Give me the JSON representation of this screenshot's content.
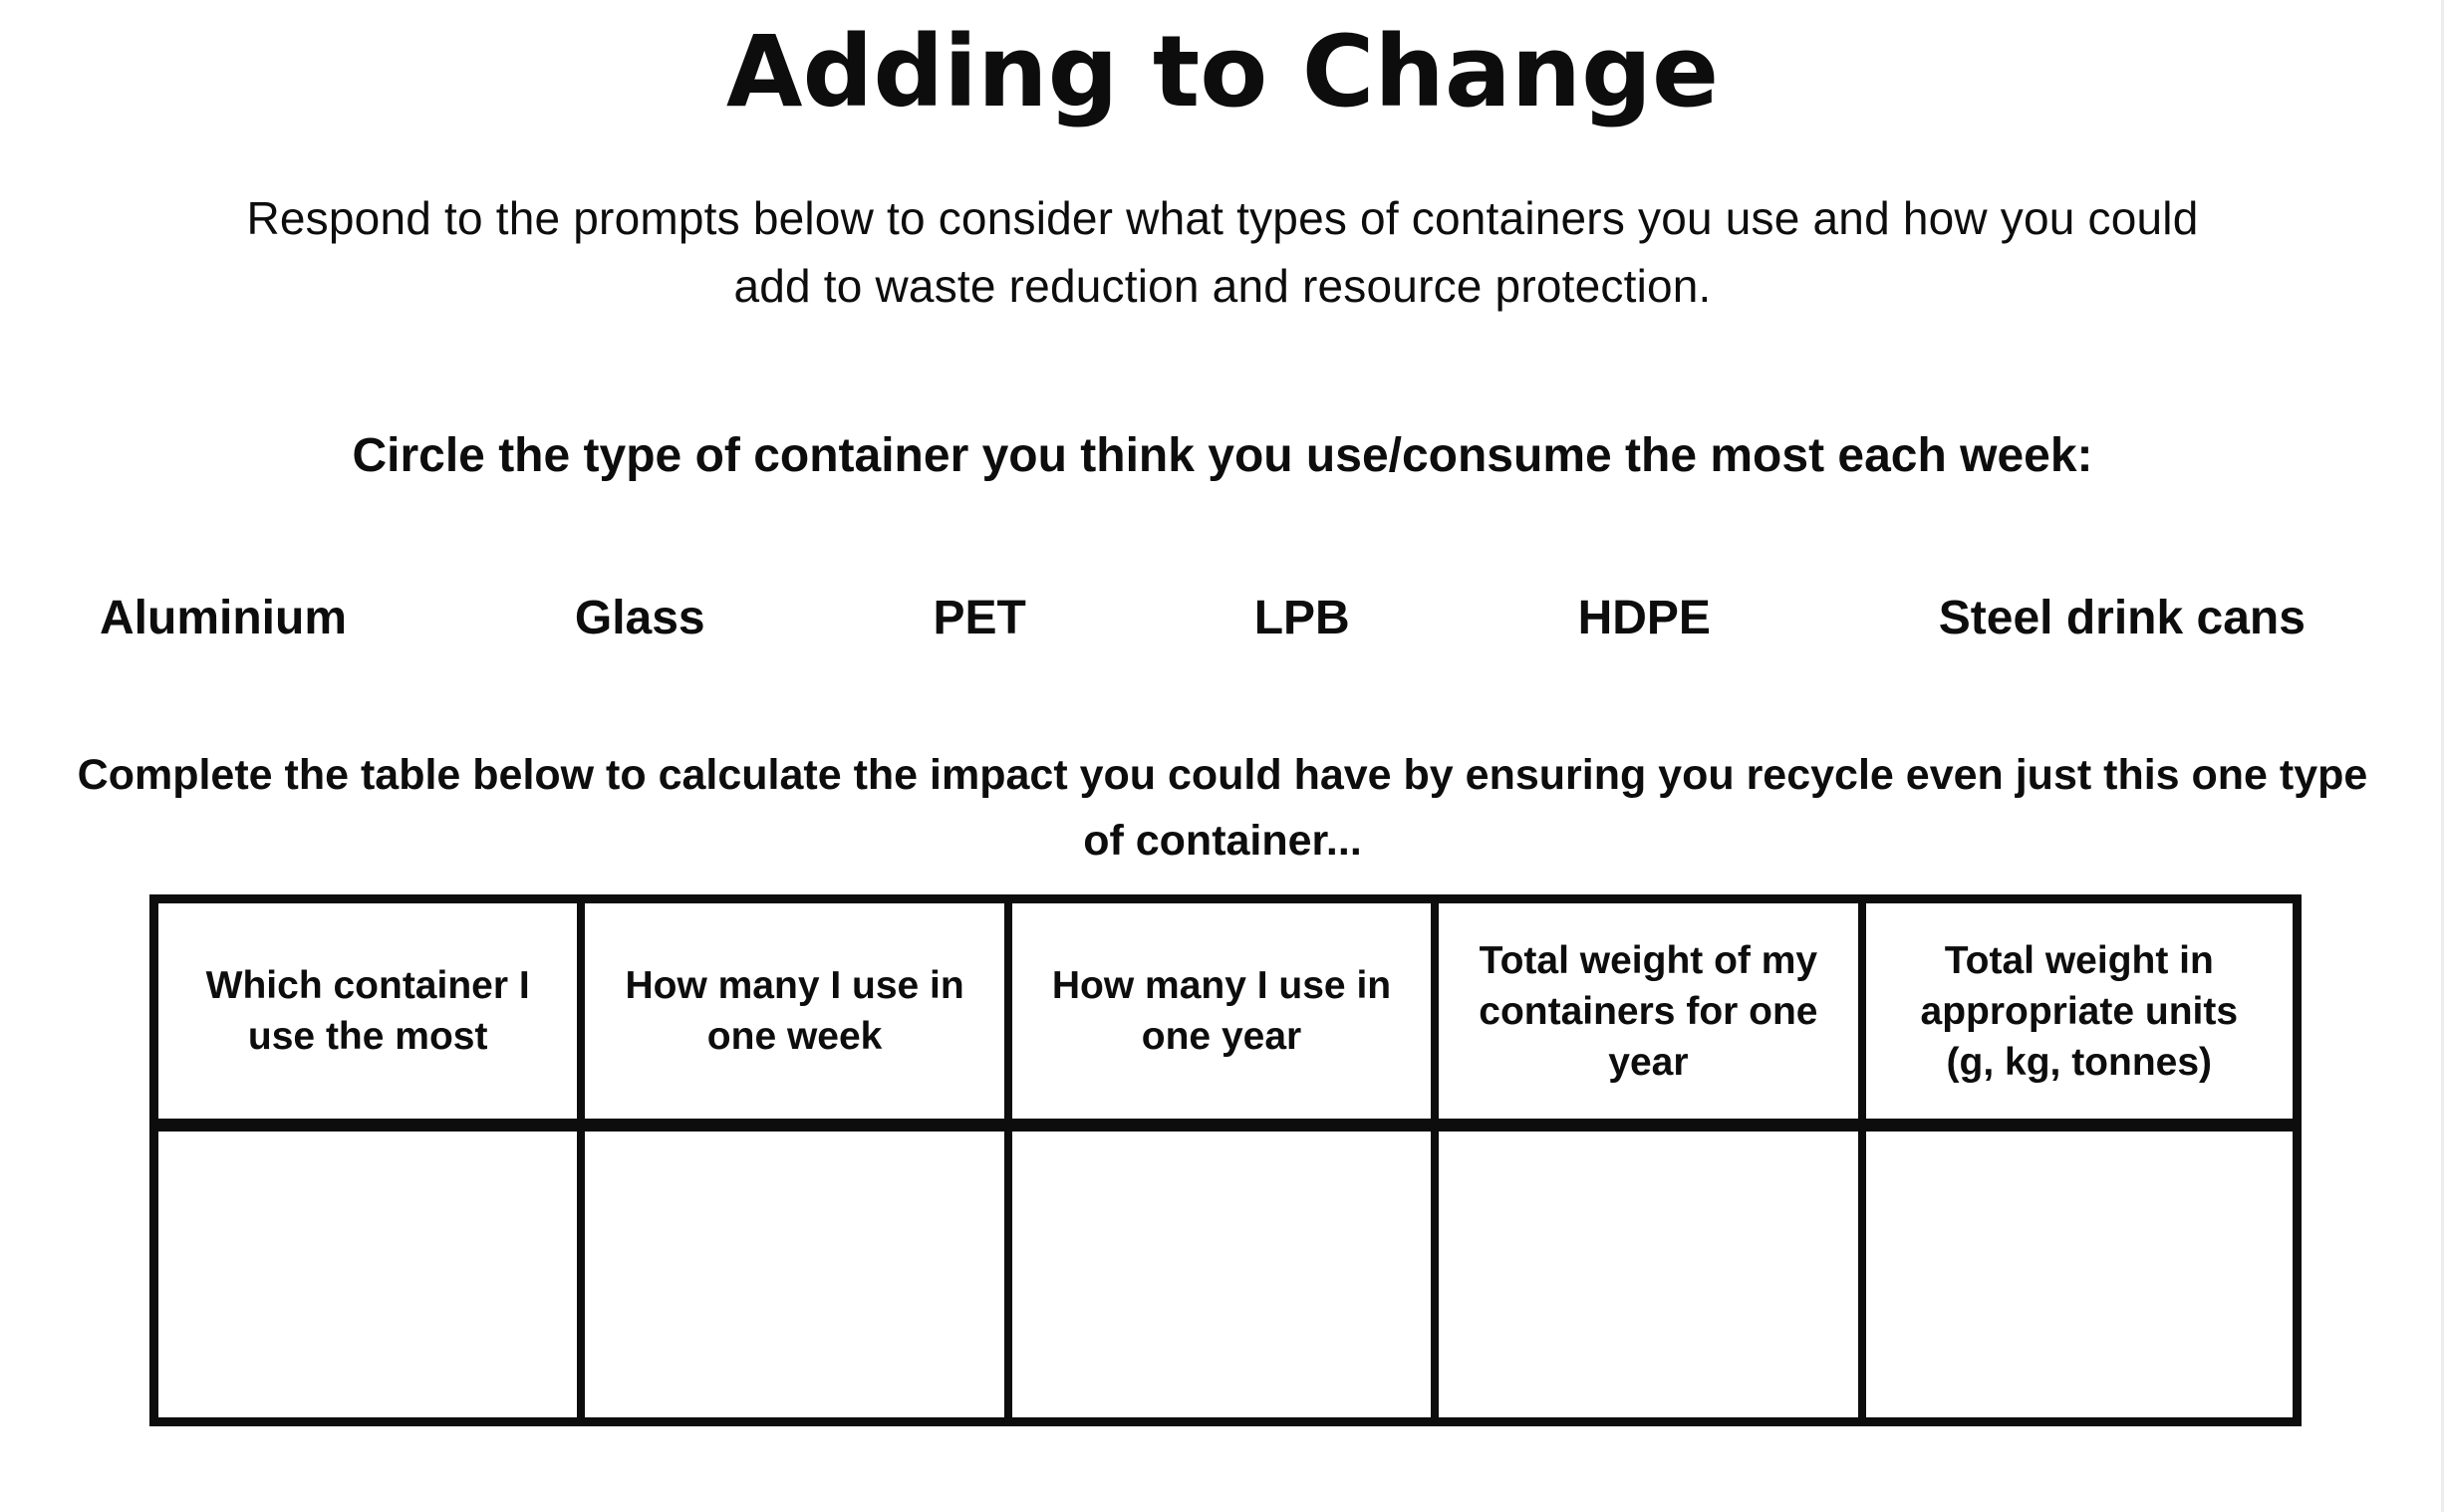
{
  "page": {
    "title": "Adding to Change",
    "subtitle": {
      "line1": "Respond to the prompts below to consider what types of containers you use and how you could",
      "line2": "add to waste reduction and resource protection."
    },
    "circle_prompt": "Circle the type of container you think you use/consume the most each week:",
    "container_options": [
      "Aluminium",
      "Glass",
      "PET",
      "LPB",
      "HDPE",
      "Steel drink cans"
    ],
    "complete_prompt": {
      "line1": "Complete the table below to calculate the impact you could have by ensuring you recycle even just this one type",
      "line2": "of container..."
    },
    "table": {
      "headers": [
        "Which container I use the most",
        "How many I use in one week",
        "How many I use in one year",
        "Total weight of my containers for one year",
        "Total weight in appropriate units (g, kg, tonnes)"
      ],
      "row_values": [
        "",
        "",
        "",
        "",
        ""
      ]
    },
    "colors": {
      "text": "#0d0d0d",
      "table_border": "#0d0d0d",
      "background": "#ffffff"
    }
  }
}
